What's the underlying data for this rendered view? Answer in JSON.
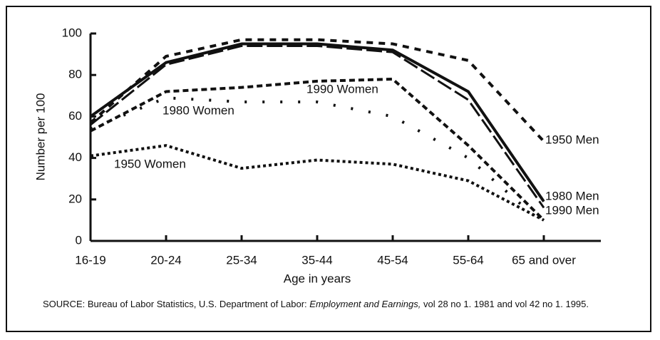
{
  "chart_data": {
    "type": "line",
    "y_label": "Number per 100",
    "x_label": "Age in years",
    "categories": [
      "16-19",
      "20-24",
      "25-34",
      "35-44",
      "45-54",
      "55-64",
      "65 and over"
    ],
    "ylim": [
      0,
      100
    ],
    "yticks": [
      0,
      20,
      40,
      60,
      80,
      100
    ],
    "series": [
      {
        "name": "1950 Men",
        "color": "#111",
        "values": [
          57,
          89,
          97,
          97,
          95,
          87,
          48
        ]
      },
      {
        "name": "1980 Men",
        "color": "#111",
        "values": [
          60,
          86,
          95,
          95,
          92,
          72,
          19
        ]
      },
      {
        "name": "1990 Men",
        "color": "#111",
        "values": [
          56,
          85,
          94,
          94,
          91,
          68,
          16
        ]
      },
      {
        "name": "1990 Women",
        "color": "#111",
        "values": [
          53,
          72,
          74,
          77,
          78,
          46,
          10
        ]
      },
      {
        "name": "1980 Women",
        "color": "#111",
        "values": [
          54,
          69,
          67,
          67,
          60,
          40,
          8
        ]
      },
      {
        "name": "1950 Women",
        "color": "#111",
        "values": [
          41,
          46,
          35,
          39,
          37,
          29,
          10
        ]
      }
    ],
    "source": {
      "prefix": "SOURCE: Bureau of Labor Statistics, U.S. Department of Labor: ",
      "title": "Employment and Earnings,",
      "suffix": " vol 28 no 1. 1981 and vol 42 no 1. 1995."
    }
  }
}
